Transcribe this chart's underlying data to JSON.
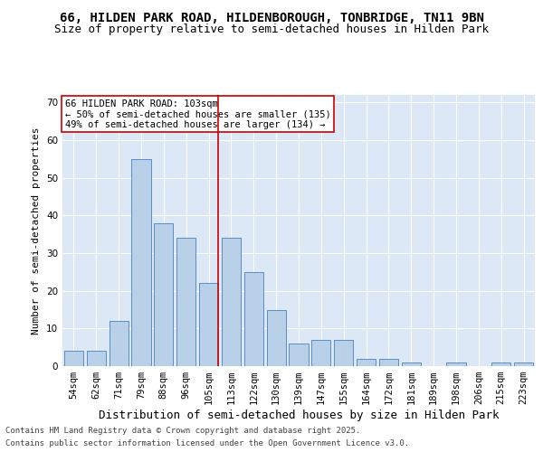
{
  "title1": "66, HILDEN PARK ROAD, HILDENBOROUGH, TONBRIDGE, TN11 9BN",
  "title2": "Size of property relative to semi-detached houses in Hilden Park",
  "xlabel": "Distribution of semi-detached houses by size in Hilden Park",
  "ylabel": "Number of semi-detached properties",
  "categories": [
    "54sqm",
    "62sqm",
    "71sqm",
    "79sqm",
    "88sqm",
    "96sqm",
    "105sqm",
    "113sqm",
    "122sqm",
    "130sqm",
    "139sqm",
    "147sqm",
    "155sqm",
    "164sqm",
    "172sqm",
    "181sqm",
    "189sqm",
    "198sqm",
    "206sqm",
    "215sqm",
    "223sqm"
  ],
  "values": [
    4,
    4,
    12,
    55,
    38,
    34,
    22,
    34,
    25,
    15,
    6,
    7,
    7,
    2,
    2,
    1,
    0,
    1,
    0,
    1,
    1
  ],
  "bar_color": "#b8d0e8",
  "bar_edge_color": "#5b8cc8",
  "vline_x_index": 6,
  "vline_color": "#cc0000",
  "annotation_title": "66 HILDEN PARK ROAD: 103sqm",
  "annotation_line1": "← 50% of semi-detached houses are smaller (135)",
  "annotation_line2": "49% of semi-detached houses are larger (134) →",
  "annotation_box_color": "#ffffff",
  "annotation_box_edge": "#cc0000",
  "ylim": [
    0,
    72
  ],
  "yticks": [
    0,
    10,
    20,
    30,
    40,
    50,
    60,
    70
  ],
  "bg_color": "#dce8f5",
  "footnote1": "Contains HM Land Registry data © Crown copyright and database right 2025.",
  "footnote2": "Contains public sector information licensed under the Open Government Licence v3.0.",
  "title1_fontsize": 10,
  "title2_fontsize": 9,
  "xlabel_fontsize": 9,
  "ylabel_fontsize": 8,
  "tick_fontsize": 7.5,
  "annotation_fontsize": 7.5,
  "footnote_fontsize": 6.5
}
